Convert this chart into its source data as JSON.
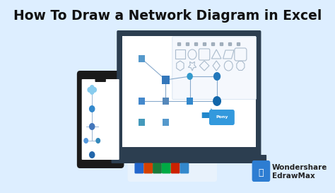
{
  "title": "How To Draw a Network Diagram in Excel",
  "title_fontsize": 13.5,
  "title_fontweight": "bold",
  "title_color": "#111111",
  "bg_color": "#ddeeff",
  "laptop_bg": "#ffffff",
  "phone_bg": "#ffffff",
  "phone_frame": "#1a1a1a",
  "laptop_frame": "#2a2a2a",
  "brand_primary": "#2d7dd2",
  "brand_name_1": "Wondershare",
  "brand_name_2": "EdrawMax",
  "brand_fontsize": 7.5,
  "icon_color": "#3a8fd9",
  "shapes_panel_bg": "#f5f8fd",
  "toolbar_icon_color": "#8899aa"
}
